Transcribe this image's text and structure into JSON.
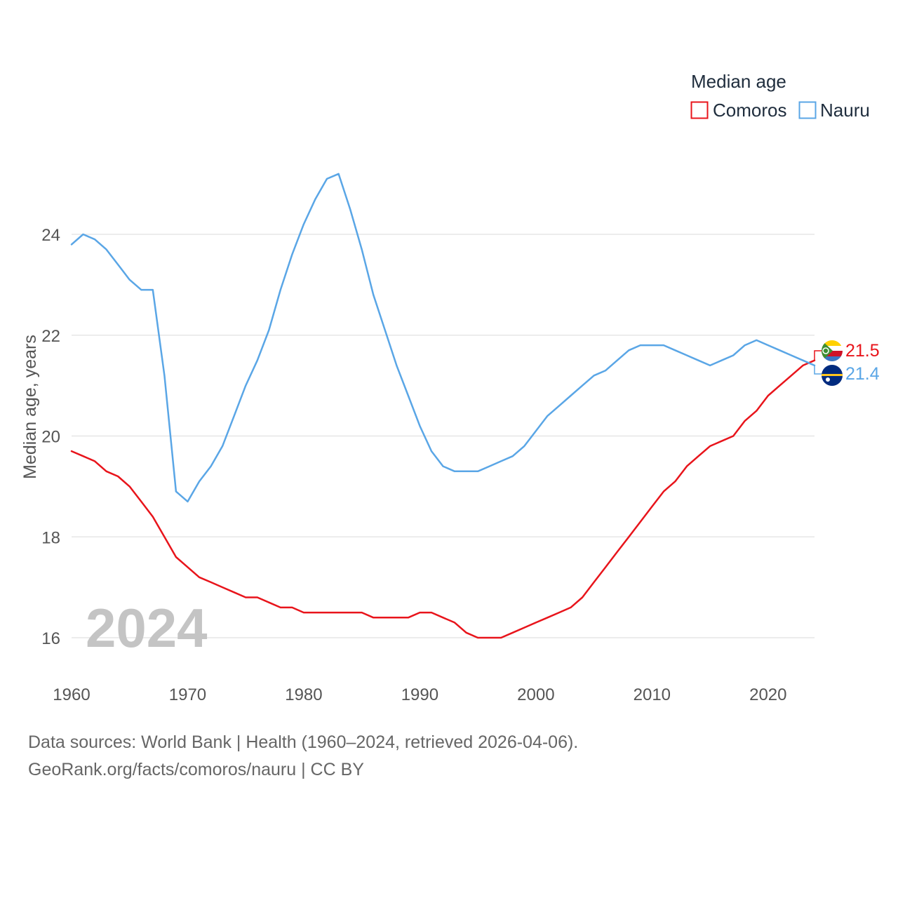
{
  "chart_data": {
    "type": "line",
    "title": "",
    "legend_title": "Median age",
    "xlabel": "",
    "ylabel": "Median age, years",
    "xlim": [
      1960,
      2024
    ],
    "ylim": [
      15.3,
      25.6
    ],
    "yticks": [
      16,
      18,
      20,
      22,
      24
    ],
    "xticks": [
      1960,
      1970,
      1980,
      1990,
      2000,
      2010,
      2020
    ],
    "year_label": "2024",
    "grid": true,
    "legend_position": "top-right",
    "x": [
      1960,
      1961,
      1962,
      1963,
      1964,
      1965,
      1966,
      1967,
      1968,
      1969,
      1970,
      1971,
      1972,
      1973,
      1974,
      1975,
      1976,
      1977,
      1978,
      1979,
      1980,
      1981,
      1982,
      1983,
      1984,
      1985,
      1986,
      1987,
      1988,
      1989,
      1990,
      1991,
      1992,
      1993,
      1994,
      1995,
      1996,
      1997,
      1998,
      1999,
      2000,
      2001,
      2002,
      2003,
      2004,
      2005,
      2006,
      2007,
      2008,
      2009,
      2010,
      2011,
      2012,
      2013,
      2014,
      2015,
      2016,
      2017,
      2018,
      2019,
      2020,
      2021,
      2022,
      2023,
      2024
    ],
    "series": [
      {
        "name": "Comoros",
        "color": "#e8141b",
        "end_label": "21.5",
        "values": [
          19.7,
          19.6,
          19.5,
          19.3,
          19.2,
          19.0,
          18.7,
          18.4,
          18.0,
          17.6,
          17.4,
          17.2,
          17.1,
          17.0,
          16.9,
          16.8,
          16.8,
          16.7,
          16.6,
          16.6,
          16.5,
          16.5,
          16.5,
          16.5,
          16.5,
          16.5,
          16.4,
          16.4,
          16.4,
          16.4,
          16.5,
          16.5,
          16.4,
          16.3,
          16.1,
          16.0,
          16.0,
          16.0,
          16.1,
          16.2,
          16.3,
          16.4,
          16.5,
          16.6,
          16.8,
          17.1,
          17.4,
          17.7,
          18.0,
          18.3,
          18.6,
          18.9,
          19.1,
          19.4,
          19.6,
          19.8,
          19.9,
          20.0,
          20.3,
          20.5,
          20.8,
          21.0,
          21.2,
          21.4,
          21.5
        ]
      },
      {
        "name": "Nauru",
        "color": "#5aa6e6",
        "end_label": "21.4",
        "values": [
          23.8,
          24.0,
          23.9,
          23.7,
          23.4,
          23.1,
          22.9,
          22.9,
          21.2,
          18.9,
          18.7,
          19.1,
          19.4,
          19.8,
          20.4,
          21.0,
          21.5,
          22.1,
          22.9,
          23.6,
          24.2,
          24.7,
          25.1,
          25.2,
          24.5,
          23.7,
          22.8,
          22.1,
          21.4,
          20.8,
          20.2,
          19.7,
          19.4,
          19.3,
          19.3,
          19.3,
          19.4,
          19.5,
          19.6,
          19.8,
          20.1,
          20.4,
          20.6,
          20.8,
          21.0,
          21.2,
          21.3,
          21.5,
          21.7,
          21.8,
          21.8,
          21.8,
          21.7,
          21.6,
          21.5,
          21.4,
          21.5,
          21.6,
          21.8,
          21.9,
          21.8,
          21.7,
          21.6,
          21.5,
          21.4
        ]
      }
    ]
  },
  "footer": {
    "line1": "Data sources: World Bank | Health (1960–2024, retrieved 2026-04-06).",
    "line2": "GeoRank.org/facts/comoros/nauru | CC BY"
  }
}
